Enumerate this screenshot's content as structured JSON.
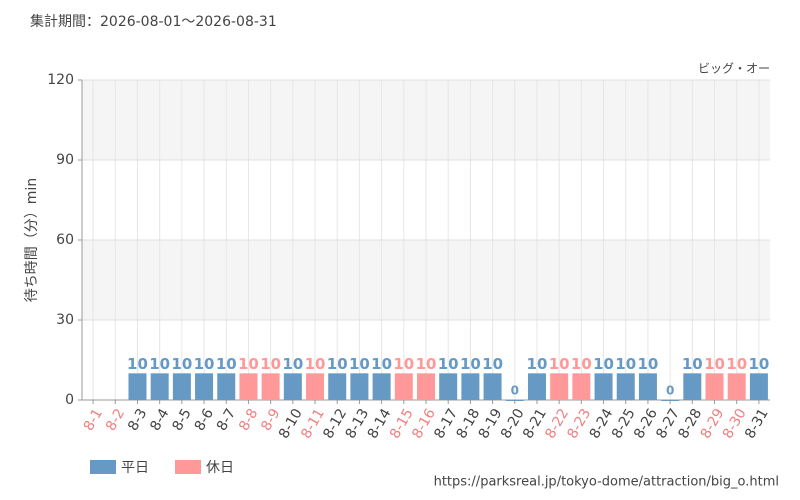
{
  "chart_data": {
    "type": "bar",
    "title": "集計期間：2026-08-01～2026-08-31",
    "subtitle": "ビッグ・オー",
    "y_label": "待ち時間（分）min",
    "source": "https://parksreal.jp/tokyo-dome/attraction/big_o.html",
    "categories": [
      "8-1",
      "8-2",
      "8-3",
      "8-4",
      "8-5",
      "8-6",
      "8-7",
      "8-8",
      "8-9",
      "8-10",
      "8-11",
      "8-12",
      "8-13",
      "8-14",
      "8-15",
      "8-16",
      "8-17",
      "8-18",
      "8-19",
      "8-20",
      "8-21",
      "8-22",
      "8-23",
      "8-24",
      "8-25",
      "8-26",
      "8-27",
      "8-28",
      "8-29",
      "8-30",
      "8-31"
    ],
    "category_colors": [
      "#f08080",
      "#f08080",
      "#444",
      "#444",
      "#444",
      "#444",
      "#444",
      "#f08080",
      "#f08080",
      "#444",
      "#f08080",
      "#444",
      "#444",
      "#444",
      "#f08080",
      "#f08080",
      "#444",
      "#444",
      "#444",
      "#444",
      "#444",
      "#f08080",
      "#f08080",
      "#444",
      "#444",
      "#444",
      "#444",
      "#444",
      "#f08080",
      "#f08080",
      "#444"
    ],
    "series": [
      {
        "name": "平日",
        "color": "#6699c4",
        "values": [
          null,
          null,
          10,
          10,
          10,
          10,
          10,
          null,
          null,
          10,
          null,
          10,
          10,
          10,
          null,
          null,
          10,
          10,
          10,
          0,
          10,
          null,
          null,
          10,
          10,
          10,
          0,
          10,
          null,
          null,
          10
        ]
      },
      {
        "name": "休日",
        "color": "#ff9999",
        "values": [
          null,
          null,
          null,
          null,
          null,
          null,
          null,
          10,
          10,
          null,
          10,
          null,
          null,
          null,
          10,
          10,
          null,
          null,
          null,
          null,
          null,
          10,
          10,
          null,
          null,
          null,
          null,
          null,
          10,
          10,
          null
        ]
      }
    ],
    "ylim": [
      0,
      120
    ],
    "yticks": [
      0,
      30,
      60,
      90,
      120
    ],
    "grid": true
  }
}
